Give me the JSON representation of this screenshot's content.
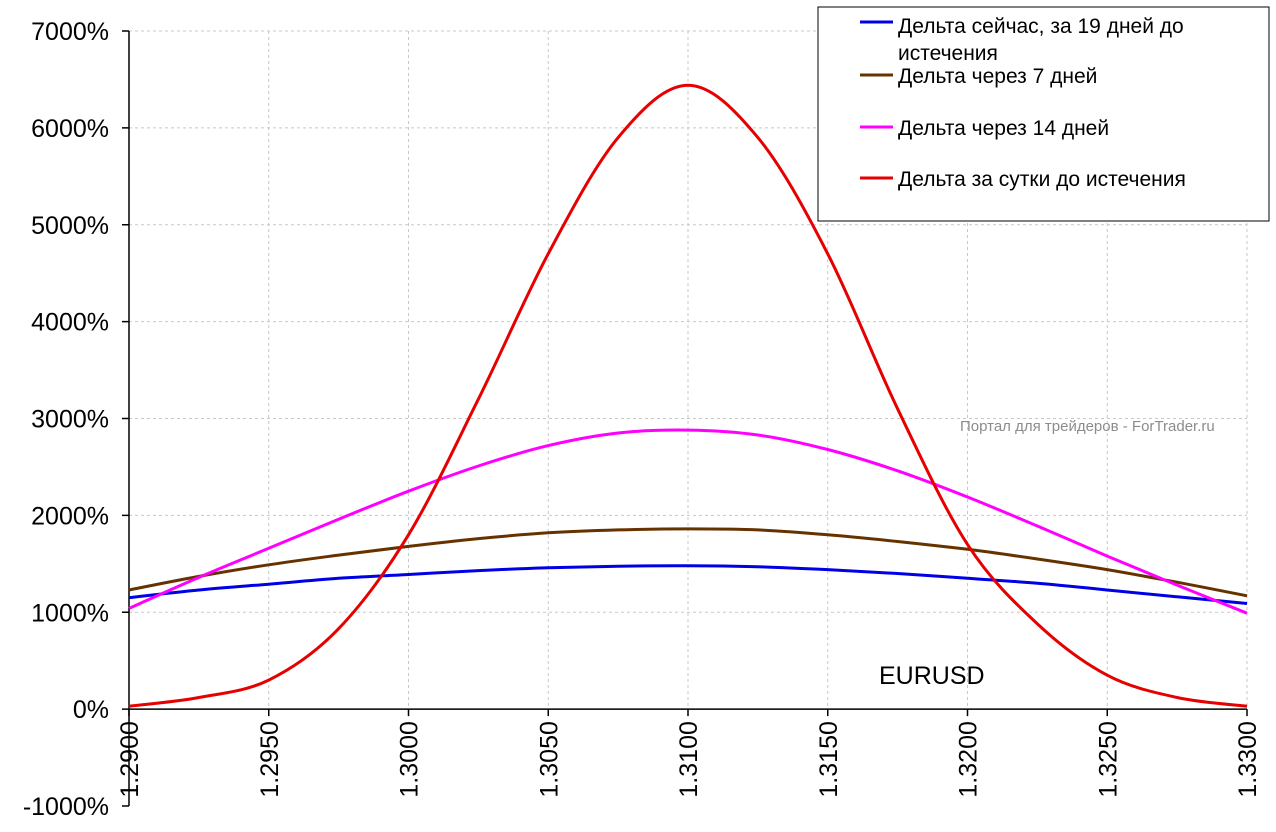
{
  "chart_data": {
    "type": "line",
    "title": "",
    "xlabel": "",
    "ylabel": "",
    "xlim": [
      1.29,
      1.33
    ],
    "ylim": [
      -1000,
      7000
    ],
    "x_ticks": [
      "1.2900",
      "1.2950",
      "1.3000",
      "1.3050",
      "1.3100",
      "1.3150",
      "1.3200",
      "1.3250",
      "1.3300"
    ],
    "y_ticks": [
      "-1000%",
      "0%",
      "1000%",
      "2000%",
      "3000%",
      "4000%",
      "5000%",
      "6000%",
      "7000%"
    ],
    "grid": true,
    "legend_position": "top-right",
    "x": [
      1.29,
      1.2925,
      1.295,
      1.2975,
      1.3,
      1.3025,
      1.305,
      1.3075,
      1.31,
      1.3125,
      1.315,
      1.3175,
      1.32,
      1.3225,
      1.325,
      1.3275,
      1.33
    ],
    "series": [
      {
        "name": "Дельта сейчас, за 19 дней до истечения",
        "color": "#0000e6",
        "values": [
          1150,
          1230,
          1290,
          1350,
          1390,
          1430,
          1460,
          1475,
          1480,
          1470,
          1440,
          1400,
          1350,
          1300,
          1230,
          1160,
          1090
        ]
      },
      {
        "name": "Дельта через 7 дней",
        "color": "#663300",
        "values": [
          1230,
          1370,
          1490,
          1590,
          1680,
          1760,
          1820,
          1850,
          1860,
          1850,
          1800,
          1730,
          1650,
          1550,
          1440,
          1310,
          1170
        ]
      },
      {
        "name": "Дельта через 14 дней",
        "color": "#ff00ff",
        "values": [
          1040,
          1360,
          1660,
          1960,
          2250,
          2510,
          2720,
          2850,
          2880,
          2830,
          2680,
          2460,
          2190,
          1890,
          1580,
          1280,
          990
        ]
      },
      {
        "name": "Дельта за сутки до истечения",
        "color": "#e60000",
        "values": [
          30,
          120,
          300,
          830,
          1800,
          3200,
          4700,
          5900,
          6440,
          5900,
          4700,
          3100,
          1700,
          880,
          350,
          120,
          30
        ]
      }
    ],
    "annotations": [
      {
        "text": "EURUSD"
      },
      {
        "text": "Портал для трейдеров - ForTrader.ru"
      }
    ]
  }
}
